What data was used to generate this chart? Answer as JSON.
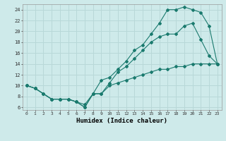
{
  "xlabel": "Humidex (Indice chaleur)",
  "ylabel": "",
  "background_color": "#ceeaea",
  "line_color": "#1a7a6e",
  "grid_color": "#b8d8d8",
  "xlim": [
    -0.5,
    23.5
  ],
  "ylim": [
    5.5,
    25
  ],
  "xticks": [
    0,
    1,
    2,
    3,
    4,
    5,
    6,
    7,
    8,
    9,
    10,
    11,
    12,
    13,
    14,
    15,
    16,
    17,
    18,
    19,
    20,
    21,
    22,
    23
  ],
  "yticks": [
    6,
    8,
    10,
    12,
    14,
    16,
    18,
    20,
    22,
    24
  ],
  "line1_x": [
    0,
    1,
    2,
    3,
    4,
    5,
    6,
    7,
    8,
    9,
    10,
    11,
    12,
    13,
    14,
    15,
    16,
    17,
    18,
    19,
    20,
    21,
    22,
    23
  ],
  "line1_y": [
    10,
    9.5,
    8.5,
    7.5,
    7.5,
    7.5,
    7.0,
    6.5,
    8.5,
    8.5,
    10.0,
    10.5,
    11.0,
    11.5,
    12.0,
    12.5,
    13.0,
    13.0,
    13.5,
    13.5,
    14.0,
    14.0,
    14.0,
    14.0
  ],
  "line2_x": [
    0,
    1,
    2,
    3,
    4,
    5,
    6,
    7,
    8,
    9,
    10,
    11,
    12,
    13,
    14,
    15,
    16,
    17,
    18,
    19,
    20,
    21,
    22,
    23
  ],
  "line2_y": [
    10,
    9.5,
    8.5,
    7.5,
    7.5,
    7.5,
    7.0,
    6.0,
    8.5,
    8.5,
    10.5,
    12.5,
    13.5,
    15.0,
    16.5,
    18.0,
    19.0,
    19.5,
    19.5,
    21.0,
    21.5,
    18.5,
    15.5,
    14.0
  ],
  "line3_x": [
    0,
    1,
    2,
    3,
    4,
    5,
    6,
    7,
    8,
    9,
    10,
    11,
    12,
    13,
    14,
    15,
    16,
    17,
    18,
    19,
    20,
    21,
    22,
    23
  ],
  "line3_y": [
    10,
    9.5,
    8.5,
    7.5,
    7.5,
    7.5,
    7.0,
    6.0,
    8.5,
    11.0,
    11.5,
    13.0,
    14.5,
    16.5,
    17.5,
    19.5,
    21.5,
    24.0,
    24.0,
    24.5,
    24.0,
    23.5,
    21.0,
    14.0
  ]
}
